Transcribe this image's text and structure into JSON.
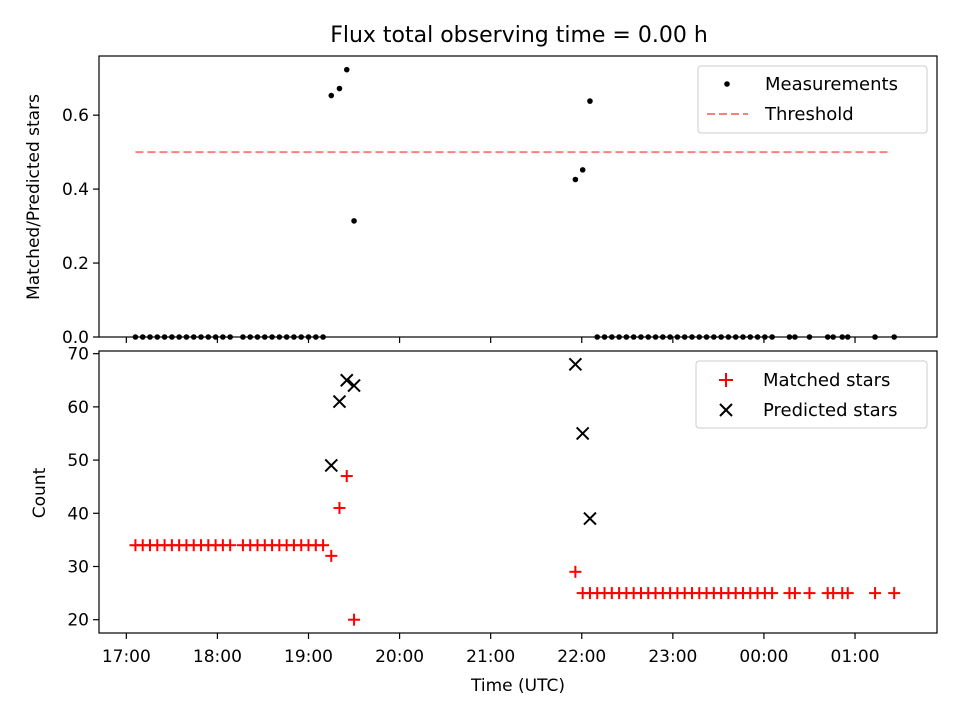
{
  "chart_data": [
    {
      "type": "scatter",
      "title": "Flux total observing time = 0.00 h",
      "xlabel": "",
      "ylabel": "Matched/Predicted stars",
      "xlim": [
        16.7,
        25.9
      ],
      "ylim": [
        0,
        0.76
      ],
      "yticks": [
        0.0,
        0.2,
        0.4,
        0.6
      ],
      "ytick_labels": [
        "0.0",
        "0.2",
        "0.4",
        "0.6"
      ],
      "legend_position": "top-right",
      "series": [
        {
          "name": "Measurements",
          "kind": "scatter-dot",
          "color": "#000000",
          "points": [
            [
              17.1,
              0
            ],
            [
              17.18,
              0
            ],
            [
              17.26,
              0
            ],
            [
              17.34,
              0
            ],
            [
              17.42,
              0
            ],
            [
              17.5,
              0
            ],
            [
              17.58,
              0
            ],
            [
              17.66,
              0
            ],
            [
              17.74,
              0
            ],
            [
              17.82,
              0
            ],
            [
              17.9,
              0
            ],
            [
              17.98,
              0
            ],
            [
              18.06,
              0
            ],
            [
              18.14,
              0
            ],
            [
              18.28,
              0
            ],
            [
              18.36,
              0
            ],
            [
              18.44,
              0
            ],
            [
              18.52,
              0
            ],
            [
              18.6,
              0
            ],
            [
              18.68,
              0
            ],
            [
              18.76,
              0
            ],
            [
              18.84,
              0
            ],
            [
              18.92,
              0
            ],
            [
              19.0,
              0
            ],
            [
              19.08,
              0
            ],
            [
              19.16,
              0
            ],
            [
              19.25,
              0.653
            ],
            [
              19.34,
              0.672
            ],
            [
              19.42,
              0.723
            ],
            [
              19.5,
              0.314
            ],
            [
              21.93,
              0.426
            ],
            [
              22.01,
              0.452
            ],
            [
              22.09,
              0.638
            ],
            [
              22.17,
              0
            ],
            [
              22.25,
              0
            ],
            [
              22.33,
              0
            ],
            [
              22.41,
              0
            ],
            [
              22.49,
              0
            ],
            [
              22.57,
              0
            ],
            [
              22.65,
              0
            ],
            [
              22.73,
              0
            ],
            [
              22.81,
              0
            ],
            [
              22.89,
              0
            ],
            [
              22.97,
              0
            ],
            [
              23.05,
              0
            ],
            [
              23.13,
              0
            ],
            [
              23.21,
              0
            ],
            [
              23.29,
              0
            ],
            [
              23.37,
              0
            ],
            [
              23.45,
              0
            ],
            [
              23.53,
              0
            ],
            [
              23.61,
              0
            ],
            [
              23.69,
              0
            ],
            [
              23.77,
              0
            ],
            [
              23.85,
              0
            ],
            [
              23.93,
              0
            ],
            [
              24.01,
              0
            ],
            [
              24.09,
              0
            ],
            [
              24.28,
              0
            ],
            [
              24.34,
              0
            ],
            [
              24.5,
              0
            ],
            [
              24.7,
              0
            ],
            [
              24.76,
              0
            ],
            [
              24.86,
              0
            ],
            [
              24.92,
              0
            ],
            [
              25.22,
              0
            ],
            [
              25.43,
              0
            ]
          ]
        },
        {
          "name": "Threshold",
          "kind": "dashed-line",
          "color": "#ff7f7f",
          "x": [
            17.1,
            25.4
          ],
          "y": [
            0.5,
            0.5
          ]
        }
      ]
    },
    {
      "type": "scatter",
      "title": "",
      "xlabel": "Time (UTC)",
      "ylabel": "Count",
      "xlim": [
        16.7,
        25.9
      ],
      "ylim": [
        17.5,
        70.5
      ],
      "yticks": [
        20,
        30,
        40,
        50,
        60,
        70
      ],
      "ytick_labels": [
        "20",
        "30",
        "40",
        "50",
        "60",
        "70"
      ],
      "xticks": [
        17,
        18,
        19,
        20,
        21,
        22,
        23,
        24,
        25
      ],
      "xtick_labels": [
        "17:00",
        "18:00",
        "19:00",
        "20:00",
        "21:00",
        "22:00",
        "23:00",
        "00:00",
        "01:00"
      ],
      "legend_position": "top-right",
      "series": [
        {
          "name": "Matched stars",
          "kind": "scatter-plus",
          "color": "#ff0000",
          "points": [
            [
              17.1,
              34
            ],
            [
              17.18,
              34
            ],
            [
              17.26,
              34
            ],
            [
              17.34,
              34
            ],
            [
              17.42,
              34
            ],
            [
              17.5,
              34
            ],
            [
              17.58,
              34
            ],
            [
              17.66,
              34
            ],
            [
              17.74,
              34
            ],
            [
              17.82,
              34
            ],
            [
              17.9,
              34
            ],
            [
              17.98,
              34
            ],
            [
              18.06,
              34
            ],
            [
              18.14,
              34
            ],
            [
              18.28,
              34
            ],
            [
              18.36,
              34
            ],
            [
              18.44,
              34
            ],
            [
              18.52,
              34
            ],
            [
              18.6,
              34
            ],
            [
              18.68,
              34
            ],
            [
              18.76,
              34
            ],
            [
              18.84,
              34
            ],
            [
              18.92,
              34
            ],
            [
              19.0,
              34
            ],
            [
              19.08,
              34
            ],
            [
              19.16,
              34
            ],
            [
              19.25,
              32
            ],
            [
              19.34,
              41
            ],
            [
              19.42,
              47
            ],
            [
              19.5,
              20
            ],
            [
              21.93,
              29
            ],
            [
              22.01,
              25
            ],
            [
              22.09,
              25
            ],
            [
              22.17,
              25
            ],
            [
              22.25,
              25
            ],
            [
              22.33,
              25
            ],
            [
              22.41,
              25
            ],
            [
              22.49,
              25
            ],
            [
              22.57,
              25
            ],
            [
              22.65,
              25
            ],
            [
              22.73,
              25
            ],
            [
              22.81,
              25
            ],
            [
              22.89,
              25
            ],
            [
              22.97,
              25
            ],
            [
              23.05,
              25
            ],
            [
              23.13,
              25
            ],
            [
              23.21,
              25
            ],
            [
              23.29,
              25
            ],
            [
              23.37,
              25
            ],
            [
              23.45,
              25
            ],
            [
              23.53,
              25
            ],
            [
              23.61,
              25
            ],
            [
              23.69,
              25
            ],
            [
              23.77,
              25
            ],
            [
              23.85,
              25
            ],
            [
              23.93,
              25
            ],
            [
              24.01,
              25
            ],
            [
              24.09,
              25
            ],
            [
              24.28,
              25
            ],
            [
              24.34,
              25
            ],
            [
              24.5,
              25
            ],
            [
              24.7,
              25
            ],
            [
              24.76,
              25
            ],
            [
              24.86,
              25
            ],
            [
              24.92,
              25
            ],
            [
              25.22,
              25
            ],
            [
              25.43,
              25
            ]
          ]
        },
        {
          "name": "Predicted stars",
          "kind": "scatter-x",
          "color": "#000000",
          "points": [
            [
              19.25,
              49
            ],
            [
              19.34,
              61
            ],
            [
              19.42,
              65
            ],
            [
              19.5,
              64
            ],
            [
              21.93,
              68
            ],
            [
              22.01,
              55
            ],
            [
              22.09,
              39
            ]
          ]
        }
      ]
    }
  ]
}
